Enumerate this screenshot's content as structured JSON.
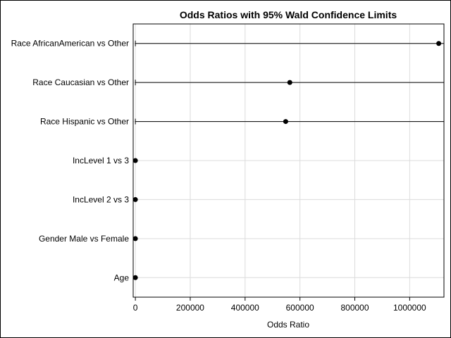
{
  "chart_data": {
    "type": "scatter",
    "title": "Odds Ratios with 95% Wald Confidence Limits",
    "xlabel": "Odds Ratio",
    "ylabel": "",
    "xlim": [
      -8000,
      1125000
    ],
    "x_ticks": [
      0,
      200000,
      400000,
      600000,
      800000,
      1000000
    ],
    "grid": true,
    "categories": [
      "Race AfricanAmerican vs Other",
      "Race Caucasian vs Other",
      "Race Hispanic vs Other",
      "IncLevel 1 vs 3",
      "IncLevel 2 vs 3",
      "Gender Male vs Female",
      "Age"
    ],
    "points": [
      {
        "estimate": 1106000,
        "lower": 0,
        "upper": 1125000
      },
      {
        "estimate": 563000,
        "lower": 0,
        "upper": 1125000
      },
      {
        "estimate": 548000,
        "lower": 0,
        "upper": 1125000
      },
      {
        "estimate": 1,
        "lower": 1,
        "upper": 1
      },
      {
        "estimate": 1,
        "lower": 1,
        "upper": 1
      },
      {
        "estimate": 1,
        "lower": 1,
        "upper": 1
      },
      {
        "estimate": 1,
        "lower": 1,
        "upper": 1
      }
    ]
  }
}
